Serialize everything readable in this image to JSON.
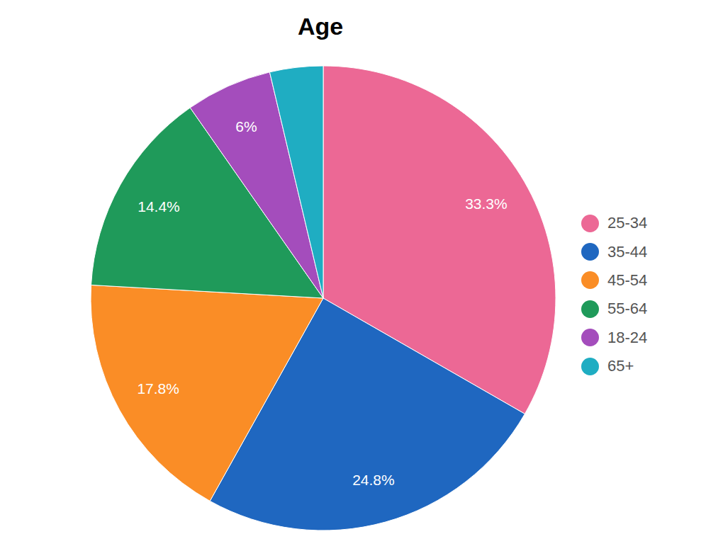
{
  "chart_data": {
    "type": "pie",
    "title": "Age",
    "categories": [
      "25-34",
      "35-44",
      "45-54",
      "55-64",
      "18-24",
      "65+"
    ],
    "values": [
      33.3,
      24.8,
      17.8,
      14.4,
      6,
      3.7
    ],
    "value_labels": [
      "33.3%",
      "24.8%",
      "17.8%",
      "14.4%",
      "6%",
      null
    ],
    "colors": [
      "#ec6895",
      "#1f67c0",
      "#fa8d26",
      "#1f9a5a",
      "#a44dbc",
      "#1fadc2"
    ],
    "data_labels": true,
    "legend": "right"
  }
}
